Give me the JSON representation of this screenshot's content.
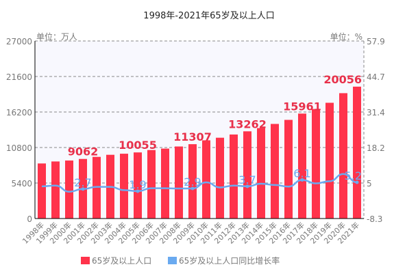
{
  "chart_data": {
    "type": "bar",
    "title": "1998年-2021年65岁及以上人口",
    "left_unit": "单位：万人",
    "right_unit": "单位：%",
    "categories": [
      "1998年",
      "1999年",
      "2000年",
      "2001年",
      "2002年",
      "2003年",
      "2004年",
      "2005年",
      "2006年",
      "2007年",
      "2008年",
      "2009年",
      "2010年",
      "2011年",
      "2012年",
      "2013年",
      "2014年",
      "2015年",
      "2016年",
      "2017年",
      "2018年",
      "2019年",
      "2020年",
      "2021年"
    ],
    "series": [
      {
        "name": "65岁及以上人口",
        "type": "bar",
        "axis": "left",
        "color": "#ff334b",
        "values": [
          8375,
          8679,
          8821,
          9062,
          9377,
          9692,
          9857,
          10055,
          10419,
          10636,
          10956,
          11307,
          11894,
          12288,
          12777,
          13262,
          13755,
          14386,
          15003,
          15961,
          16658,
          17603,
          19064,
          20056
        ],
        "labeled": [
          "9062",
          "10055",
          "11307",
          "13262",
          "15961",
          "20056"
        ]
      },
      {
        "name": "65岁及以上人口同比增长率",
        "type": "line",
        "axis": "right",
        "color": "#6aaaf0",
        "values": [
          3.7,
          4.0,
          1.7,
          2.7,
          3.5,
          3.5,
          2.3,
          1.9,
          3.0,
          3.0,
          2.9,
          2.9,
          5.2,
          3.3,
          4.0,
          3.7,
          4.7,
          4.2,
          3.6,
          6.1,
          4.8,
          5.6,
          8.3,
          5.2
        ],
        "labeled": [
          "2.7",
          "1.9",
          "2.9",
          "3.7",
          "6.1",
          "5.2"
        ]
      }
    ],
    "label_indices": [
      3,
      7,
      11,
      15,
      19,
      23
    ],
    "left_axis": {
      "range": [
        0,
        27000
      ],
      "ticks": [
        "0",
        "5400",
        "10800",
        "16200",
        "21600",
        "27000"
      ]
    },
    "right_axis": {
      "range": [
        -8.3,
        57.9
      ],
      "ticks": [
        "-8.3",
        "5",
        "18.2",
        "31.4",
        "44.7",
        "57.9"
      ]
    },
    "grid": true,
    "legend": "bottom"
  }
}
